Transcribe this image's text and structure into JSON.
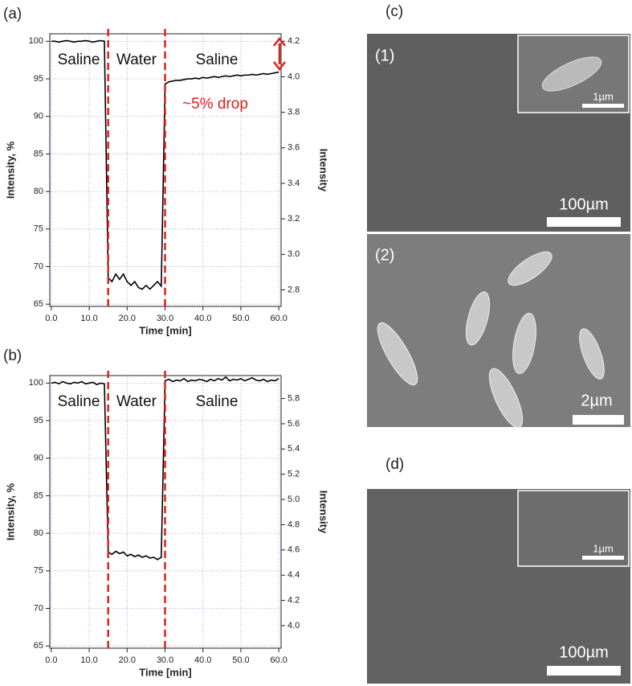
{
  "chart_data": [
    {
      "type": "line",
      "panel": "(a)",
      "xlabel": "Time [min]",
      "ylabel": "Intensity, %",
      "y2label": "Intensity",
      "x": [
        0,
        1,
        2,
        3,
        4,
        5,
        6,
        7,
        8,
        9,
        10,
        11,
        12,
        13,
        14,
        15,
        16,
        17,
        18,
        19,
        20,
        21,
        22,
        23,
        24,
        25,
        26,
        27,
        28,
        29,
        30,
        31,
        32,
        33,
        34,
        35,
        36,
        37,
        38,
        39,
        40,
        41,
        42,
        43,
        44,
        45,
        46,
        47,
        48,
        49,
        50,
        51,
        52,
        53,
        54,
        55,
        56,
        57,
        58,
        59,
        60
      ],
      "series": [
        {
          "color": "#000000",
          "values": [
            100,
            100,
            99.9,
            100,
            100.1,
            100,
            99.9,
            100,
            100,
            100.1,
            100,
            99.9,
            100,
            100.1,
            100,
            68.5,
            68,
            69,
            68.3,
            69,
            68,
            67.5,
            68,
            67.2,
            67,
            67.5,
            67,
            67.5,
            68,
            67.4,
            94.3,
            94.6,
            94.7,
            94.8,
            94.8,
            94.9,
            95,
            95,
            95.1,
            95,
            95.2,
            95.1,
            95.2,
            95.3,
            95.2,
            95.3,
            95.4,
            95.3,
            95.4,
            95.5,
            95.4,
            95.5,
            95.5,
            95.6,
            95.5,
            95.6,
            95.7,
            95.6,
            95.7,
            95.8,
            95.9
          ]
        }
      ],
      "vlines": [
        15,
        30
      ],
      "vline_color": "#e0201b",
      "annotations": [
        "Saline",
        "Water",
        "Saline",
        "~5% drop"
      ],
      "xlim": [
        -0.4,
        60.6
      ],
      "ylim": [
        64.7,
        101
      ],
      "y2lim": [
        2.707,
        4.242
      ],
      "xticks": [
        {
          "value": 0,
          "label": "0.0"
        },
        {
          "value": 10,
          "label": "10.0"
        },
        {
          "value": 20,
          "label": "20.0"
        },
        {
          "value": 30,
          "label": "30.0"
        },
        {
          "value": 40,
          "label": "40.0"
        },
        {
          "value": 50,
          "label": "50.0"
        },
        {
          "value": 60,
          "label": "60.0"
        }
      ],
      "yticks": [
        65,
        70,
        75,
        80,
        85,
        90,
        95,
        100
      ],
      "y2ticks": [
        {
          "value": 2.8,
          "label": "2.8"
        },
        {
          "value": 3,
          "label": "3.0"
        },
        {
          "value": 3.2,
          "label": "3.2"
        },
        {
          "value": 3.4,
          "label": "3.4"
        },
        {
          "value": 3.6,
          "label": "3.6"
        },
        {
          "value": 3.8,
          "label": "3.8"
        },
        {
          "value": 4,
          "label": "4.0"
        },
        {
          "value": 4.2,
          "label": "4.2"
        }
      ],
      "grid": true
    },
    {
      "type": "line",
      "panel": "(b)",
      "xlabel": "Time [min]",
      "ylabel": "Intensity, %",
      "y2label": "Intensity",
      "x": [
        0,
        1,
        2,
        3,
        4,
        5,
        6,
        7,
        8,
        9,
        10,
        11,
        12,
        13,
        14,
        15,
        16,
        17,
        18,
        19,
        20,
        21,
        22,
        23,
        24,
        25,
        26,
        27,
        28,
        29,
        30,
        31,
        32,
        33,
        34,
        35,
        36,
        37,
        38,
        39,
        40,
        41,
        42,
        43,
        44,
        45,
        46,
        47,
        48,
        49,
        50,
        51,
        52,
        53,
        54,
        55,
        56,
        57,
        58,
        59,
        60
      ],
      "series": [
        {
          "color": "#000000",
          "values": [
            100,
            100.1,
            99.9,
            100.2,
            100,
            99.9,
            100.1,
            100,
            100.2,
            99.9,
            100,
            100.1,
            99.8,
            100,
            99.9,
            77.5,
            77.2,
            77.6,
            77.3,
            77.5,
            77,
            77.2,
            76.9,
            77.1,
            76.8,
            77,
            76.7,
            76.8,
            76.5,
            76.8,
            100.3,
            100.5,
            100.2,
            100.4,
            100.3,
            100.6,
            100.2,
            100.4,
            100.3,
            100.5,
            100.4,
            100.2,
            100.5,
            100.3,
            100.6,
            100.4,
            100.8,
            100.3,
            100.5,
            100.4,
            100.6,
            100.3,
            100.5,
            100.7,
            100.4,
            100.3,
            100.5,
            100.2,
            100.4,
            100.3,
            100.6
          ]
        }
      ],
      "vlines": [
        15,
        30
      ],
      "vline_color": "#e0201b",
      "annotations": [
        "Saline",
        "Water",
        "Saline"
      ],
      "xlim": [
        -0.4,
        60.6
      ],
      "ylim": [
        64.7,
        101
      ],
      "y2lim": [
        3.821,
        5.982
      ],
      "xticks": [
        {
          "value": 0,
          "label": "0.0"
        },
        {
          "value": 10,
          "label": "10.0"
        },
        {
          "value": 20,
          "label": "20.0"
        },
        {
          "value": 30,
          "label": "30.0"
        },
        {
          "value": 40,
          "label": "40.0"
        },
        {
          "value": 50,
          "label": "50.0"
        },
        {
          "value": 60,
          "label": "60.0"
        }
      ],
      "yticks": [
        65,
        70,
        75,
        80,
        85,
        90,
        95,
        100
      ],
      "y2ticks": [
        {
          "value": 4,
          "label": "4.0"
        },
        {
          "value": 4.2,
          "label": "4.2"
        },
        {
          "value": 4.4,
          "label": "4.4"
        },
        {
          "value": 4.6,
          "label": "4.6"
        },
        {
          "value": 4.8,
          "label": "4.8"
        },
        {
          "value": 5,
          "label": "5.0"
        },
        {
          "value": 5.2,
          "label": "5.2"
        },
        {
          "value": 5.4,
          "label": "5.4"
        },
        {
          "value": 5.6,
          "label": "5.6"
        },
        {
          "value": 5.8,
          "label": "5.8"
        }
      ],
      "grid": true
    }
  ],
  "images": {
    "c": {
      "label": "(c)",
      "first": {
        "label": "(1)",
        "inset_scale": "1µm",
        "scale": "100µm"
      },
      "second": {
        "label": "(2)",
        "scale": "2µm"
      }
    },
    "d": {
      "label": "(d)",
      "inset_scale": "1µm",
      "scale": "100µm"
    }
  }
}
